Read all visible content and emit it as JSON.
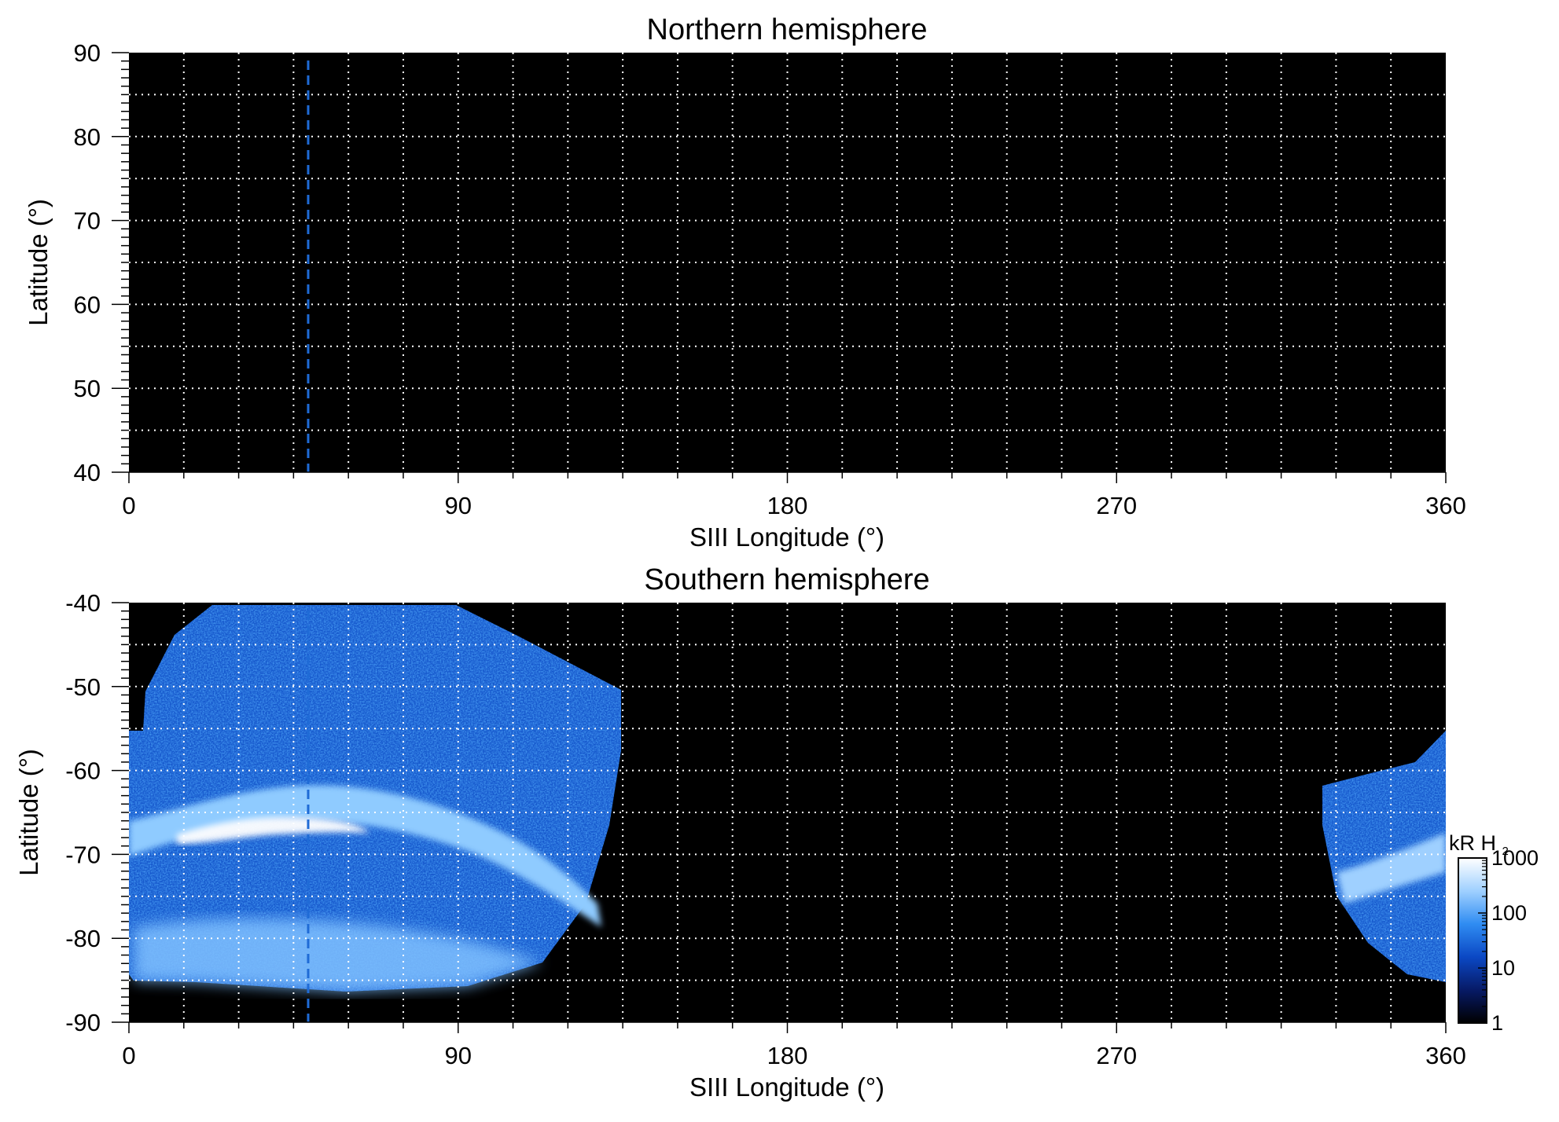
{
  "chart_data": [
    {
      "type": "heatmap",
      "title": "Northern hemisphere",
      "xlabel": "SIII Longitude (°)",
      "ylabel": "Latitude (°)",
      "xlim": [
        0,
        360
      ],
      "ylim": [
        40,
        90
      ],
      "x_ticks": [
        0,
        90,
        180,
        270,
        360
      ],
      "x_tick_labels": [
        "0",
        "90",
        "180",
        "270",
        "360"
      ],
      "y_ticks": [
        40,
        50,
        60,
        70,
        80,
        90
      ],
      "y_tick_labels": [
        "40",
        "50",
        "60",
        "70",
        "80",
        "90"
      ],
      "grid": "dotted white every 15° longitude and 5° latitude",
      "marker_longitude": 49,
      "marker_color": "#1f6bd6",
      "emission": "none"
    },
    {
      "type": "heatmap",
      "title": "Southern hemisphere",
      "xlabel": "SIII Longitude (°)",
      "ylabel": "Latitude (°)",
      "xlim": [
        0,
        360
      ],
      "ylim": [
        -90,
        -40
      ],
      "x_ticks": [
        0,
        90,
        180,
        270,
        360
      ],
      "x_tick_labels": [
        "0",
        "90",
        "180",
        "270",
        "360"
      ],
      "y_ticks": [
        -90,
        -80,
        -70,
        -60,
        -50,
        -40
      ],
      "y_tick_labels": [
        "-90",
        "-80",
        "-70",
        "-60",
        "-50",
        "-40"
      ],
      "grid": "dotted white every 15° longitude and 5° latitude",
      "marker_longitude": 49,
      "marker_color": "#1f6bd6",
      "coverage_regions": [
        {
          "lon_range": [
            0,
            135
          ],
          "lat_range": [
            -87,
            -40
          ]
        },
        {
          "lon_range": [
            326,
            360
          ],
          "lat_range": [
            -86,
            -56
          ]
        }
      ],
      "main_oval_latitude_range": [
        -75,
        -66
      ],
      "colorbar": {
        "label_main": "kR H",
        "label_sub": "2",
        "scale": "log",
        "range": [
          1,
          1000
        ],
        "ticks": [
          1,
          10,
          100,
          1000
        ],
        "tick_labels": [
          "1",
          "10",
          "100",
          "1000"
        ],
        "colors": [
          "#000000",
          "#071a66",
          "#0b48c4",
          "#2f8cf2",
          "#9fd0ff",
          "#ffffff"
        ]
      }
    }
  ]
}
